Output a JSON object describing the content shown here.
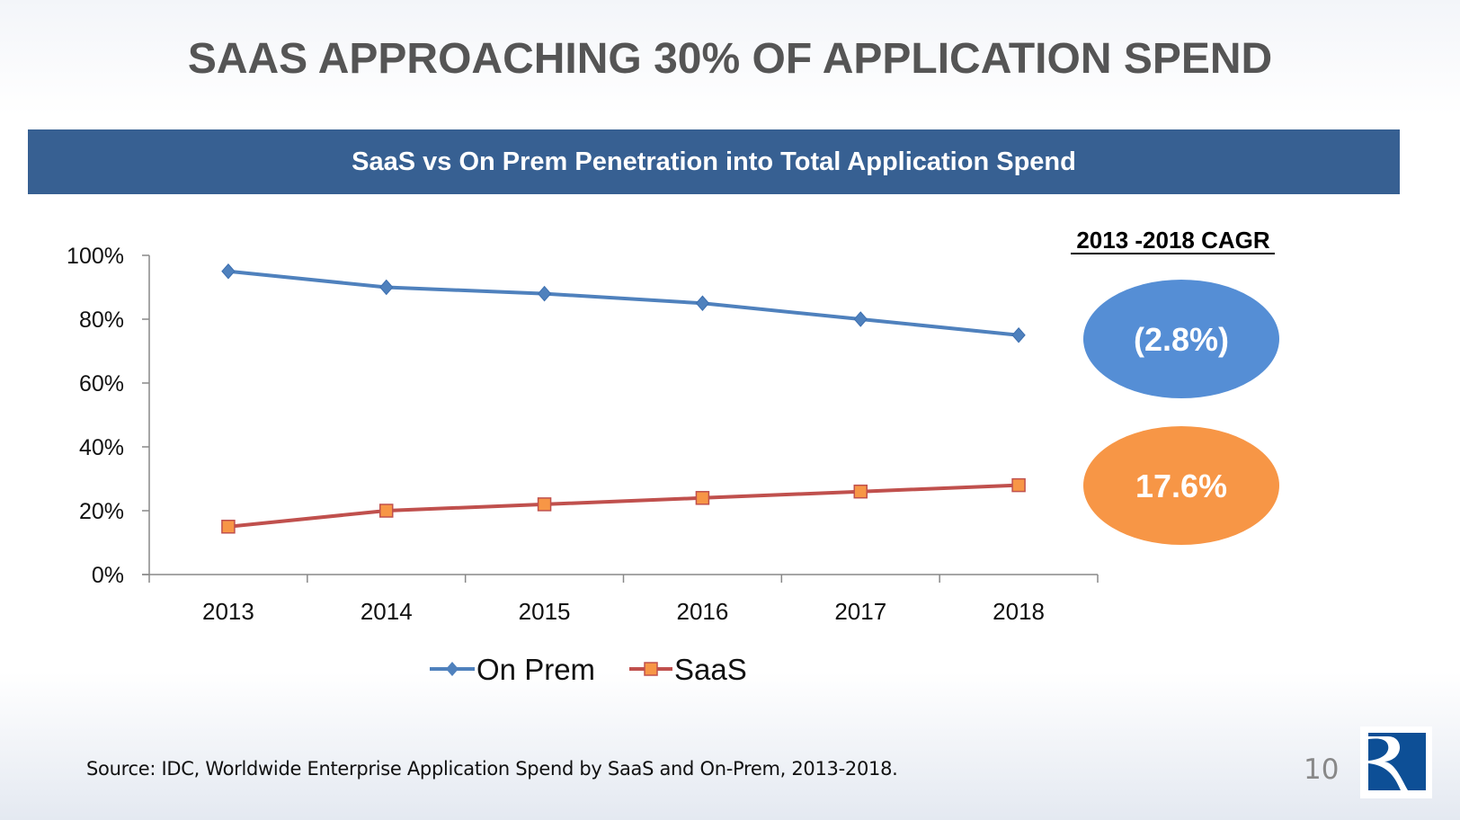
{
  "title": "SAAS APPROACHING 30% OF APPLICATION SPEND",
  "banner": "SaaS vs On Prem Penetration into Total Application Spend",
  "cagr": {
    "heading": "2013 -2018 CAGR",
    "on_prem": "(2.8%)",
    "saas": "17.6%",
    "on_prem_color": "#558ed5",
    "saas_color": "#f79646"
  },
  "chart_data": {
    "type": "line",
    "title": "",
    "xlabel": "",
    "ylabel": "",
    "categories": [
      "2013",
      "2014",
      "2015",
      "2016",
      "2017",
      "2018"
    ],
    "ylim": [
      0,
      100
    ],
    "yticks": [
      "0%",
      "20%",
      "40%",
      "60%",
      "80%",
      "100%"
    ],
    "grid": false,
    "legend": "bottom",
    "series": [
      {
        "name": "On Prem",
        "values": [
          95,
          90,
          88,
          85,
          80,
          75
        ],
        "color": "#4f81bd",
        "marker": "diamond"
      },
      {
        "name": "SaaS",
        "values": [
          15,
          20,
          22,
          24,
          26,
          28
        ],
        "color": "#c0504d",
        "marker_color": "#f79646",
        "marker": "square"
      }
    ]
  },
  "source": "Source: IDC, Worldwide Enterprise Application Spend by SaaS and On-Prem, 2013-2018.",
  "page_number": "10",
  "logo": "R"
}
